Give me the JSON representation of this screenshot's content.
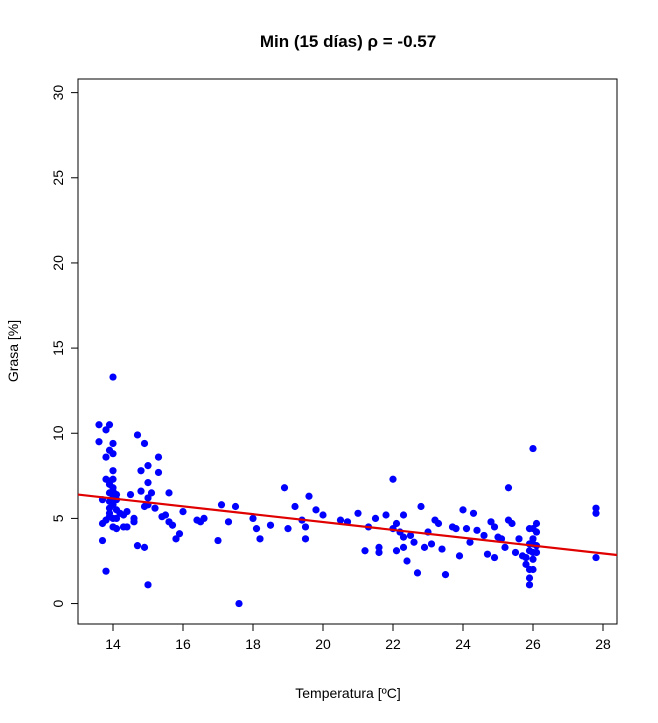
{
  "chart_data": {
    "type": "scatter",
    "title": "Min (15 días)   ρ = -0.57",
    "xlabel": "Temperatura [ºC]",
    "ylabel": "Grasa [%]",
    "xlim": [
      13,
      28.4
    ],
    "ylim": [
      -1.2,
      30.8
    ],
    "x_ticks": [
      14,
      16,
      18,
      20,
      22,
      24,
      26,
      28
    ],
    "y_ticks": [
      0,
      5,
      10,
      15,
      20,
      25,
      30
    ],
    "x_tick_labels": [
      "14",
      "16",
      "18",
      "20",
      "22",
      "24",
      "26",
      "28"
    ],
    "y_tick_labels": [
      "0",
      "5",
      "10",
      "15",
      "20",
      "25",
      "30"
    ],
    "grid": false,
    "point_color": "#0000ff",
    "line_color": "#e00000",
    "regression_line": {
      "x": [
        13,
        28.4
      ],
      "y": [
        6.4,
        2.85
      ]
    },
    "points": [
      [
        13.6,
        10.5
      ],
      [
        13.6,
        9.5
      ],
      [
        13.7,
        3.7
      ],
      [
        13.7,
        4.7
      ],
      [
        13.8,
        4.9
      ],
      [
        13.7,
        6.1
      ],
      [
        13.8,
        1.9
      ],
      [
        13.8,
        8.6
      ],
      [
        13.8,
        10.2
      ],
      [
        13.9,
        10.5
      ],
      [
        13.9,
        9.0
      ],
      [
        13.9,
        6.5
      ],
      [
        13.9,
        6.0
      ],
      [
        13.9,
        5.6
      ],
      [
        13.9,
        5.3
      ],
      [
        13.9,
        5.1
      ],
      [
        13.9,
        7.0
      ],
      [
        13.9,
        7.2
      ],
      [
        13.8,
        7.3
      ],
      [
        14.0,
        7.3
      ],
      [
        14.0,
        13.3
      ],
      [
        14.0,
        6.2
      ],
      [
        14.0,
        5.8
      ],
      [
        14.0,
        5.0
      ],
      [
        14.0,
        4.5
      ],
      [
        14.0,
        6.6
      ],
      [
        14.0,
        7.8
      ],
      [
        14.0,
        8.8
      ],
      [
        14.0,
        9.4
      ],
      [
        14.1,
        6.4
      ],
      [
        14.1,
        6.1
      ],
      [
        14.1,
        5.5
      ],
      [
        14.1,
        5.0
      ],
      [
        14.1,
        4.4
      ],
      [
        14.0,
        6.8
      ],
      [
        14.2,
        5.3
      ],
      [
        14.3,
        5.2
      ],
      [
        14.3,
        4.5
      ],
      [
        14.4,
        5.4
      ],
      [
        14.4,
        4.5
      ],
      [
        14.5,
        6.4
      ],
      [
        14.6,
        5.0
      ],
      [
        14.6,
        4.8
      ],
      [
        14.7,
        9.9
      ],
      [
        14.7,
        3.4
      ],
      [
        14.8,
        6.6
      ],
      [
        14.8,
        7.8
      ],
      [
        14.9,
        3.3
      ],
      [
        14.9,
        9.4
      ],
      [
        14.9,
        5.7
      ],
      [
        15.0,
        6.2
      ],
      [
        15.0,
        5.8
      ],
      [
        15.0,
        7.1
      ],
      [
        15.0,
        8.1
      ],
      [
        15.0,
        1.1
      ],
      [
        15.1,
        6.5
      ],
      [
        15.2,
        5.6
      ],
      [
        15.3,
        8.6
      ],
      [
        15.3,
        7.7
      ],
      [
        15.4,
        5.1
      ],
      [
        15.5,
        5.2
      ],
      [
        15.6,
        6.5
      ],
      [
        15.6,
        4.8
      ],
      [
        15.7,
        4.6
      ],
      [
        15.8,
        3.8
      ],
      [
        15.9,
        4.1
      ],
      [
        16.0,
        5.4
      ],
      [
        16.4,
        4.9
      ],
      [
        16.5,
        4.8
      ],
      [
        16.6,
        5.0
      ],
      [
        17.0,
        3.7
      ],
      [
        17.1,
        5.8
      ],
      [
        17.3,
        4.8
      ],
      [
        17.5,
        5.7
      ],
      [
        17.6,
        0.0
      ],
      [
        18.0,
        5.0
      ],
      [
        18.1,
        4.4
      ],
      [
        18.2,
        3.8
      ],
      [
        18.5,
        4.6
      ],
      [
        18.9,
        6.8
      ],
      [
        19.0,
        4.4
      ],
      [
        19.2,
        5.7
      ],
      [
        19.4,
        4.9
      ],
      [
        19.5,
        3.8
      ],
      [
        19.5,
        4.5
      ],
      [
        19.6,
        6.3
      ],
      [
        19.8,
        5.5
      ],
      [
        20.0,
        5.2
      ],
      [
        20.5,
        4.9
      ],
      [
        20.7,
        4.8
      ],
      [
        21.0,
        5.3
      ],
      [
        21.2,
        3.1
      ],
      [
        21.3,
        4.5
      ],
      [
        21.5,
        5.0
      ],
      [
        21.6,
        3.0
      ],
      [
        21.6,
        3.3
      ],
      [
        21.8,
        5.2
      ],
      [
        22.0,
        7.3
      ],
      [
        22.0,
        4.4
      ],
      [
        22.1,
        4.7
      ],
      [
        22.1,
        3.1
      ],
      [
        22.2,
        4.2
      ],
      [
        22.3,
        3.9
      ],
      [
        22.3,
        3.3
      ],
      [
        22.3,
        5.2
      ],
      [
        22.4,
        2.5
      ],
      [
        22.5,
        4.0
      ],
      [
        22.6,
        3.6
      ],
      [
        22.7,
        1.8
      ],
      [
        22.8,
        5.7
      ],
      [
        22.9,
        3.3
      ],
      [
        23.0,
        4.2
      ],
      [
        23.1,
        3.5
      ],
      [
        23.2,
        4.9
      ],
      [
        23.3,
        4.7
      ],
      [
        23.4,
        3.2
      ],
      [
        23.5,
        1.7
      ],
      [
        23.7,
        4.5
      ],
      [
        23.8,
        4.4
      ],
      [
        23.9,
        2.8
      ],
      [
        24.0,
        5.5
      ],
      [
        24.1,
        4.4
      ],
      [
        24.2,
        3.6
      ],
      [
        24.3,
        5.3
      ],
      [
        24.4,
        4.3
      ],
      [
        24.6,
        4.0
      ],
      [
        24.7,
        2.9
      ],
      [
        24.8,
        4.8
      ],
      [
        24.9,
        2.7
      ],
      [
        24.9,
        4.5
      ],
      [
        25.0,
        3.9
      ],
      [
        25.1,
        3.8
      ],
      [
        25.2,
        3.3
      ],
      [
        25.3,
        4.9
      ],
      [
        25.3,
        6.8
      ],
      [
        25.4,
        4.7
      ],
      [
        25.5,
        3.0
      ],
      [
        25.6,
        3.8
      ],
      [
        25.7,
        2.8
      ],
      [
        25.8,
        2.7
      ],
      [
        25.8,
        2.3
      ],
      [
        25.9,
        1.5
      ],
      [
        25.9,
        1.1
      ],
      [
        25.9,
        4.4
      ],
      [
        25.9,
        3.5
      ],
      [
        25.9,
        2.0
      ],
      [
        26.0,
        9.1
      ],
      [
        26.0,
        3.5
      ],
      [
        26.0,
        3.0
      ],
      [
        26.0,
        2.6
      ],
      [
        26.0,
        4.4
      ],
      [
        26.0,
        2.0
      ],
      [
        26.1,
        3.4
      ],
      [
        26.1,
        3.0
      ],
      [
        26.1,
        4.7
      ],
      [
        26.1,
        4.2
      ],
      [
        26.0,
        3.8
      ],
      [
        25.9,
        3.1
      ],
      [
        27.8,
        5.6
      ],
      [
        27.8,
        5.3
      ],
      [
        27.8,
        2.7
      ]
    ]
  }
}
